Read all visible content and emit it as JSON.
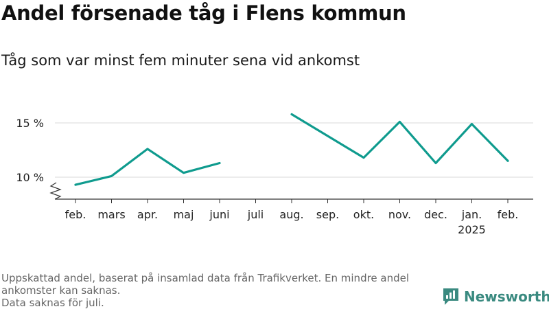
{
  "title": "Andel försenade tåg i Flens kommun",
  "subtitle": "Tåg som var minst fem minuter sena vid ankomst",
  "footer": {
    "note_line1": "Uppskattad andel, baserat på insamlad data från Trafikverket. En mindre andel",
    "note_line2": "ankomster kan saknas.",
    "note_line3": "Data saknas för juli."
  },
  "brand": {
    "name": "Newsworthy",
    "color": "#3a8a80"
  },
  "colors": {
    "line": "#0f9b8e",
    "grid": "#d9d9d9",
    "axis": "#333333"
  },
  "chart_data": {
    "type": "line",
    "title": "Andel försenade tåg i Flens kommun",
    "subtitle": "Tåg som var minst fem minuter sena vid ankomst",
    "categories": [
      "feb.",
      "mars",
      "apr.",
      "maj",
      "juni",
      "juli",
      "aug.",
      "sep.",
      "okt.",
      "nov.",
      "dec.",
      "jan.",
      "feb."
    ],
    "category_sublabels": [
      "",
      "",
      "",
      "",
      "",
      "",
      "",
      "",
      "",
      "",
      "",
      "2025",
      ""
    ],
    "series": [
      {
        "values": [
          9.3,
          10.1,
          12.6,
          10.4,
          11.3,
          null,
          15.8,
          13.8,
          11.8,
          15.1,
          11.3,
          14.9,
          11.5
        ]
      }
    ],
    "yticks": [
      10,
      15
    ],
    "ytick_labels": [
      "10 %",
      "15 %"
    ],
    "ylim": [
      8,
      16
    ],
    "axis_break": true,
    "grid": true,
    "legend": "none"
  }
}
